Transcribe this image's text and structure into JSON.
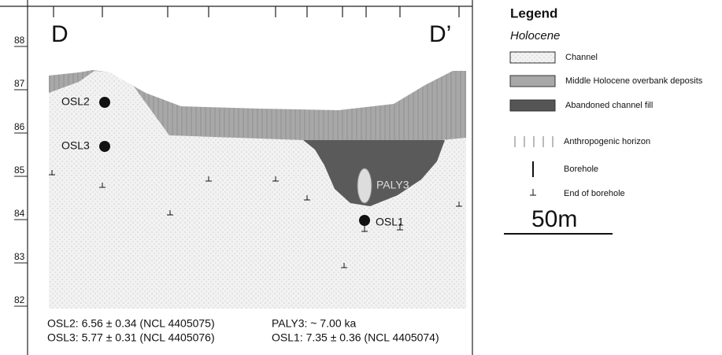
{
  "section": {
    "start_label": "D",
    "end_label": "D’",
    "elevation_ticks": [
      88,
      87,
      86,
      85,
      84,
      83,
      82
    ],
    "samples": [
      "OSL2",
      "OSL3",
      "PALY3",
      "OSL1"
    ],
    "ages": [
      "OSL2: 6.56 ± 0.34 (NCL 4405075)",
      "PALY3: ~ 7.00 ka",
      "OSL3: 5.77 ± 0.31 (NCL 4405076)",
      "OSL1: 7.35 ± 0.36 (NCL 4405074)"
    ]
  },
  "legend": {
    "title": "Legend",
    "subtitle": "Holocene",
    "items": [
      "Channel",
      "Middle Holocene overbank deposits",
      "Abandoned channel fill",
      "Anthropogenic horizon",
      "Borehole",
      "End of borehole"
    ],
    "scale": "50m"
  }
}
